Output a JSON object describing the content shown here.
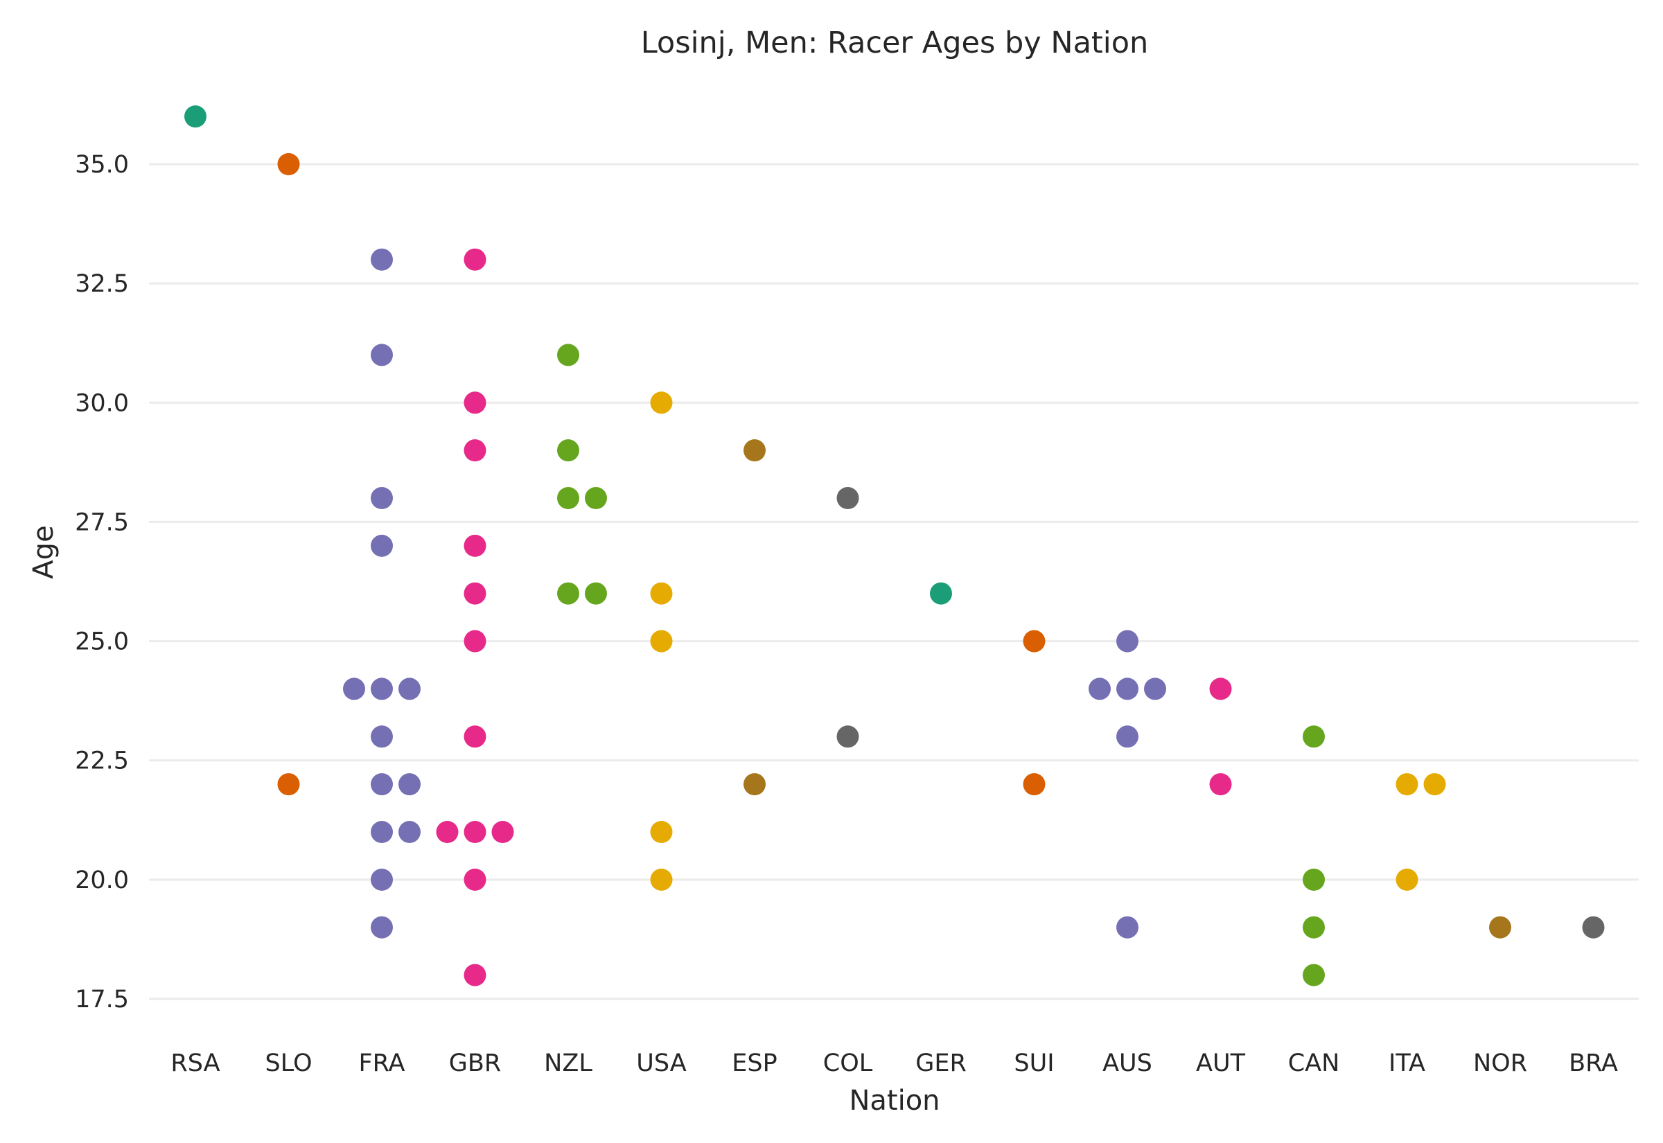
{
  "chart_data": {
    "type": "scatter",
    "subtype": "swarm",
    "title": "Losinj, Men: Racer Ages by Nation",
    "xlabel": "Nation",
    "ylabel": "Age",
    "ylim": [
      16.5,
      37
    ],
    "yticks": [
      "17.5",
      "20.0",
      "22.5",
      "25.0",
      "27.5",
      "30.0",
      "32.5",
      "35.0"
    ],
    "grid": "horizontal",
    "categories": [
      "RSA",
      "SLO",
      "FRA",
      "GBR",
      "NZL",
      "USA",
      "ESP",
      "COL",
      "GER",
      "SUI",
      "AUS",
      "AUT",
      "CAN",
      "ITA",
      "NOR",
      "BRA"
    ],
    "colors": {
      "RSA": "#1b9e77",
      "SLO": "#d95f02",
      "FRA": "#7570b3",
      "GBR": "#e7298a",
      "NZL": "#66a61e",
      "USA": "#e6ab02",
      "ESP": "#a6761d",
      "COL": "#666666",
      "GER": "#1b9e77",
      "SUI": "#d95f02",
      "AUS": "#7570b3",
      "AUT": "#e7298a",
      "CAN": "#66a61e",
      "ITA": "#e6ab02",
      "NOR": "#a6761d",
      "BRA": "#666666"
    },
    "series": [
      {
        "category": "RSA",
        "values": [
          36
        ]
      },
      {
        "category": "SLO",
        "values": [
          35,
          22
        ]
      },
      {
        "category": "FRA",
        "values": [
          33,
          31,
          28,
          27,
          24,
          24,
          24,
          23,
          22,
          22,
          21,
          21,
          20,
          19
        ]
      },
      {
        "category": "GBR",
        "values": [
          33,
          30,
          29,
          27,
          26,
          25,
          23,
          21,
          21,
          21,
          20,
          18
        ]
      },
      {
        "category": "NZL",
        "values": [
          31,
          29,
          28,
          28,
          26,
          26
        ]
      },
      {
        "category": "USA",
        "values": [
          30,
          26,
          25,
          21,
          20
        ]
      },
      {
        "category": "ESP",
        "values": [
          29,
          22
        ]
      },
      {
        "category": "COL",
        "values": [
          28,
          23
        ]
      },
      {
        "category": "GER",
        "values": [
          26
        ]
      },
      {
        "category": "SUI",
        "values": [
          25,
          22
        ]
      },
      {
        "category": "AUS",
        "values": [
          25,
          24,
          24,
          24,
          23,
          19
        ]
      },
      {
        "category": "AUT",
        "values": [
          24,
          22
        ]
      },
      {
        "category": "CAN",
        "values": [
          23,
          20,
          19,
          18
        ]
      },
      {
        "category": "ITA",
        "values": [
          22,
          22,
          20
        ]
      },
      {
        "category": "NOR",
        "values": [
          19
        ]
      },
      {
        "category": "BRA",
        "values": [
          19
        ]
      }
    ]
  }
}
